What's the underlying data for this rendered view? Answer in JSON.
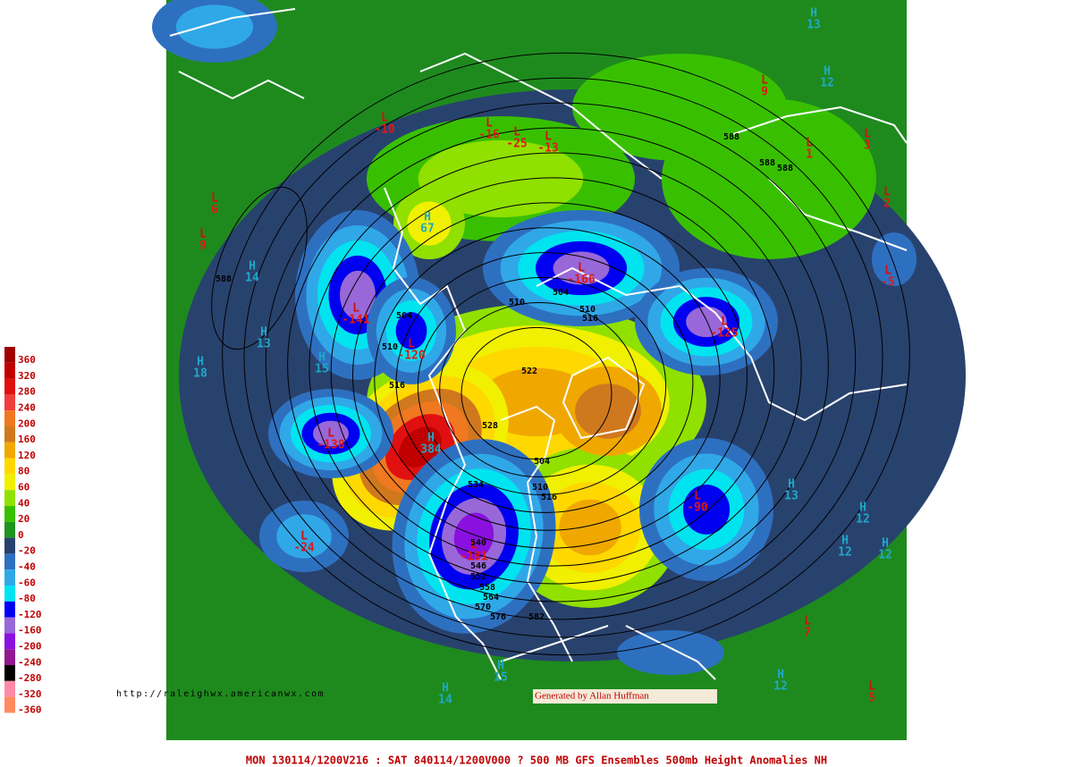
{
  "legend": {
    "items": [
      {
        "label": "360",
        "color": "#a00000"
      },
      {
        "label": "320",
        "color": "#c00000"
      },
      {
        "label": "280",
        "color": "#e01010"
      },
      {
        "label": "240",
        "color": "#f03c3c"
      },
      {
        "label": "200",
        "color": "#f07820"
      },
      {
        "label": "160",
        "color": "#d0781e"
      },
      {
        "label": "120",
        "color": "#f0a800"
      },
      {
        "label": "80",
        "color": "#ffd800"
      },
      {
        "label": "60",
        "color": "#f0f000"
      },
      {
        "label": "40",
        "color": "#90e000"
      },
      {
        "label": "20",
        "color": "#38c000"
      },
      {
        "label": "0",
        "color": "#209420"
      },
      {
        "label": "-20",
        "color": "#28426e"
      },
      {
        "label": "-40",
        "color": "#2e70c0"
      },
      {
        "label": "-60",
        "color": "#30a8e8"
      },
      {
        "label": "-80",
        "color": "#00e4f0"
      },
      {
        "label": "-120",
        "color": "#0000f0"
      },
      {
        "label": "-160",
        "color": "#9868d8"
      },
      {
        "label": "-200",
        "color": "#8a10e0"
      },
      {
        "label": "-240",
        "color": "#901890"
      },
      {
        "label": "-280",
        "color": "#000000"
      },
      {
        "label": "-320",
        "color": "#ff8aa8"
      },
      {
        "label": "-360",
        "color": "#ff8a60"
      }
    ]
  },
  "markers": [
    {
      "letter": "L",
      "value": "-10"
    },
    {
      "letter": "L",
      "value": "-16"
    },
    {
      "letter": "L",
      "value": "-25"
    },
    {
      "letter": "L",
      "value": "-13"
    },
    {
      "letter": "L",
      "value": "-166"
    },
    {
      "letter": "L",
      "value": "-141"
    },
    {
      "letter": "L",
      "value": "-120"
    },
    {
      "letter": "L",
      "value": "-138"
    },
    {
      "letter": "H",
      "value": "384"
    },
    {
      "letter": "L",
      "value": "-181"
    },
    {
      "letter": "L",
      "value": "-90"
    },
    {
      "letter": "L",
      "value": "-24"
    },
    {
      "letter": "L",
      "value": "-125"
    },
    {
      "letter": "L",
      "value": "-5"
    },
    {
      "letter": "L",
      "value": "9"
    },
    {
      "letter": "L",
      "value": "1"
    },
    {
      "letter": "L",
      "value": "3"
    },
    {
      "letter": "L",
      "value": "2"
    },
    {
      "letter": "L",
      "value": "6"
    },
    {
      "letter": "L",
      "value": "9"
    },
    {
      "letter": "L",
      "value": "7"
    },
    {
      "letter": "L",
      "value": "5"
    },
    {
      "letter": "H",
      "value": "13"
    },
    {
      "letter": "H",
      "value": "12"
    },
    {
      "letter": "H",
      "value": "14"
    },
    {
      "letter": "H",
      "value": "13"
    },
    {
      "letter": "H",
      "value": "15"
    },
    {
      "letter": "H",
      "value": "18"
    },
    {
      "letter": "H",
      "value": "13"
    },
    {
      "letter": "H",
      "value": "12"
    },
    {
      "letter": "H",
      "value": "12"
    },
    {
      "letter": "H",
      "value": "12"
    },
    {
      "letter": "H",
      "value": "14"
    },
    {
      "letter": "H",
      "value": "15"
    },
    {
      "letter": "H",
      "value": "12"
    },
    {
      "letter": "H",
      "value": "67"
    }
  ],
  "contour_labels": [
    "588",
    "510",
    "504",
    "510",
    "516",
    "504",
    "510",
    "516",
    "522",
    "528",
    "504",
    "510",
    "516",
    "534",
    "540",
    "546",
    "552",
    "558",
    "564",
    "570",
    "576",
    "582",
    "588",
    "588",
    "588"
  ],
  "url": "http://raleighwx.americanwx.com",
  "credit": "Generated by Allan Huffman",
  "caption": "MON 130114/1200V216 : SAT 840114/1200V000  ? 500 MB GFS Ensembles 500mb Height Anomalies NH"
}
